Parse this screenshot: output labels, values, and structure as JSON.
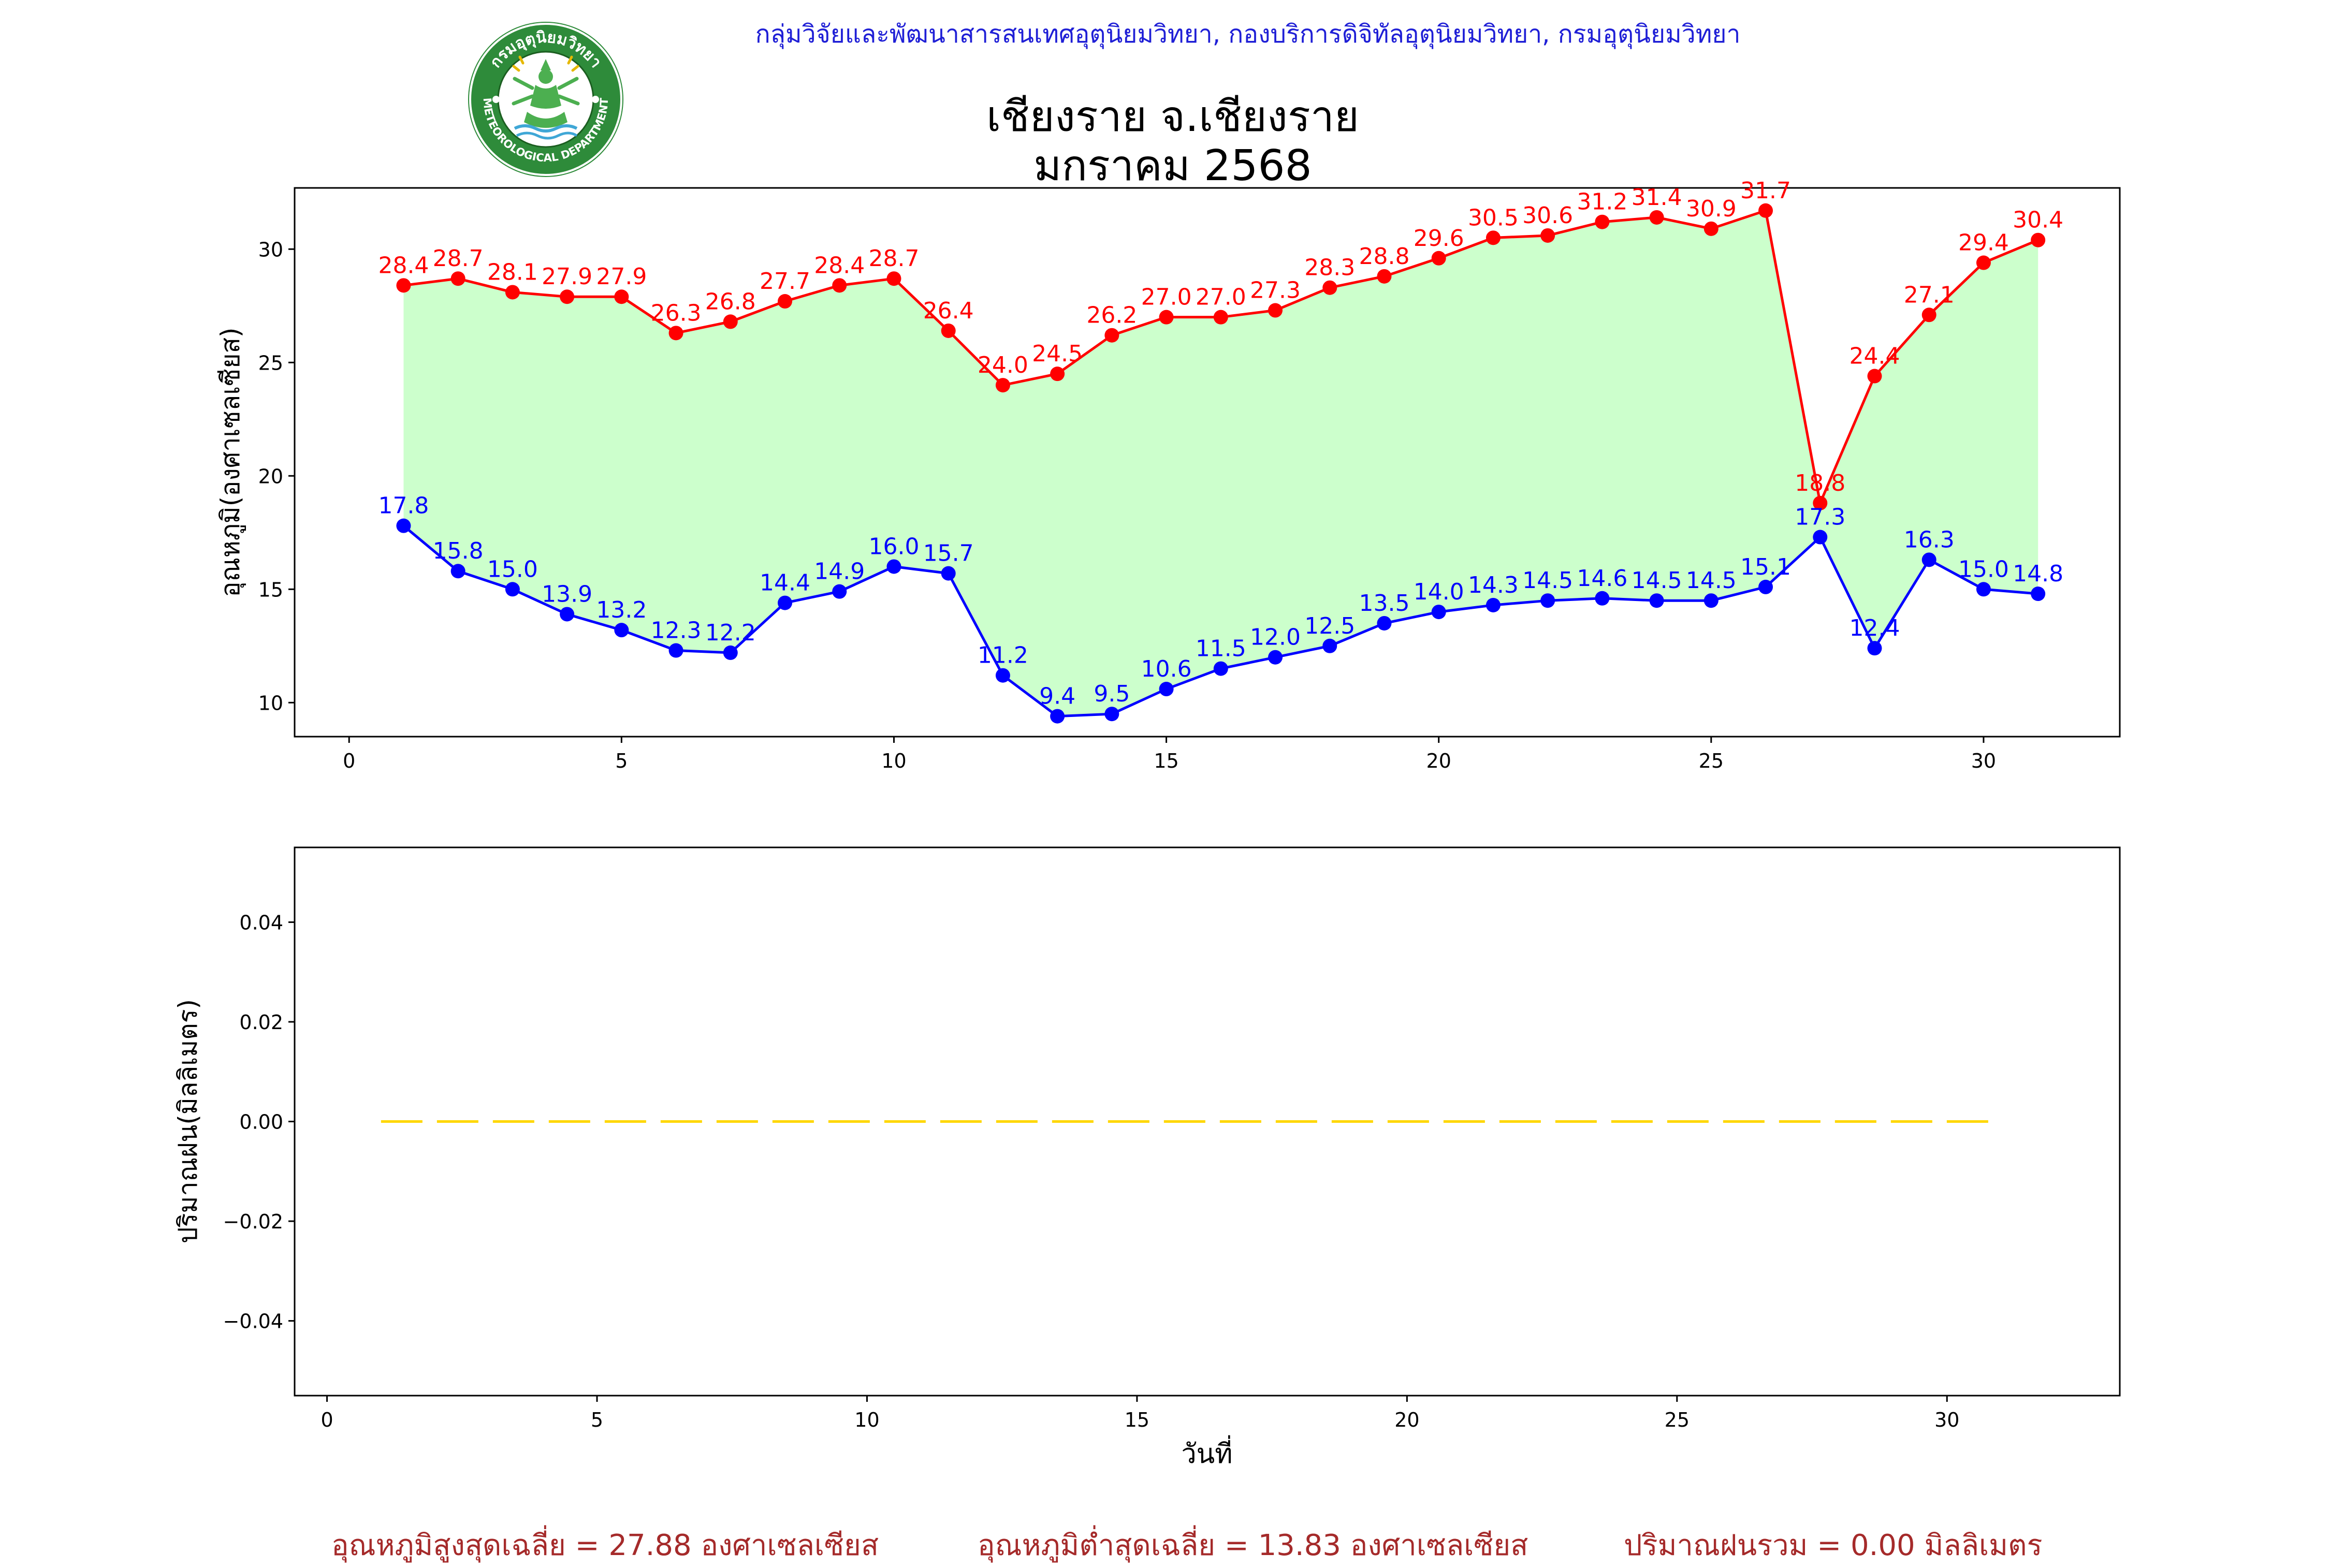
{
  "header": {
    "agency": "กลุ่มวิจัยและพัฒนาสารสนเทศอุตุนิยมวิทยา, กองบริการดิจิทัลอุตุนิยมวิทยา, กรมอุตุนิยมวิทยา",
    "title_line1": "เชียงราย จ.เชียงราย",
    "title_line2": "มกราคม 2568"
  },
  "logo": {
    "icon": "meteorological-department-seal-icon",
    "top_text": "กรมอุตุนิยมวิทยา",
    "bottom_text": "METEOROLOGICAL DEPARTMENT",
    "colors": {
      "ring": "#2e8b3a",
      "inner": "#ffffff",
      "figure": "#4caf50"
    }
  },
  "colors": {
    "max": "#ff0000",
    "min": "#0000ff",
    "fill": "#ccffcc",
    "rain": "#ffd700",
    "summary": "#a52a2a",
    "agency": "#1f1fd6"
  },
  "summary": {
    "avg_max": "อุณหภูมิสูงสุดเฉลี่ย = 27.88 องศาเซลเซียส",
    "avg_min": "อุณหภูมิต่ำสุดเฉลี่ย = 13.83 องศาเซลเซียส",
    "total_rain": "ปริมาณฝนรวม = 0.00 มิลลิเมตร"
  },
  "chart_data": [
    {
      "type": "line",
      "ylabel": "อุณหภูมิ(องศาเซลเซียส)",
      "xlabel": "",
      "xlim": [
        -1,
        32.5
      ],
      "ylim": [
        8.5,
        32.7
      ],
      "xticks": [
        0,
        5,
        10,
        15,
        20,
        25,
        30
      ],
      "yticks": [
        10,
        15,
        20,
        25,
        30
      ],
      "fill_between": true,
      "grid": false,
      "x": [
        1,
        2,
        3,
        4,
        5,
        6,
        7,
        8,
        9,
        10,
        11,
        12,
        13,
        14,
        15,
        16,
        17,
        18,
        19,
        20,
        21,
        22,
        23,
        24,
        25,
        26,
        27,
        28,
        29,
        30,
        31
      ],
      "series": [
        {
          "role": "max",
          "values": [
            28.4,
            28.7,
            28.1,
            27.9,
            27.9,
            26.3,
            26.8,
            27.7,
            28.4,
            28.7,
            26.4,
            24.0,
            24.5,
            26.2,
            27.0,
            27.0,
            27.3,
            28.3,
            28.8,
            29.6,
            30.5,
            30.6,
            31.2,
            31.4,
            30.9,
            31.7,
            18.8,
            24.4,
            27.1,
            29.4,
            30.4
          ]
        },
        {
          "role": "min",
          "values": [
            17.8,
            15.8,
            15.0,
            13.9,
            13.2,
            12.3,
            12.2,
            14.4,
            14.9,
            16.0,
            15.7,
            11.2,
            9.4,
            9.5,
            10.6,
            11.5,
            12.0,
            12.5,
            13.5,
            14.0,
            14.3,
            14.5,
            14.6,
            14.5,
            14.5,
            15.1,
            17.3,
            12.4,
            16.3,
            15.0,
            14.8
          ]
        }
      ]
    },
    {
      "type": "line",
      "ylabel": "ปริมาณฝน(มิลลิเมตร)",
      "xlabel": "วันที่",
      "xlim": [
        -0.6,
        33.2
      ],
      "ylim": [
        -0.055,
        0.055
      ],
      "xticks": [
        0,
        5,
        10,
        15,
        20,
        25,
        30
      ],
      "yticks": [
        0.04,
        0.02,
        0.0,
        -0.02,
        -0.04
      ],
      "ytick_labels": [
        "0.04",
        "0.02",
        "0.00",
        "−0.02",
        "−0.04"
      ],
      "line_style": "dashed",
      "grid": false,
      "x": [
        1,
        2,
        3,
        4,
        5,
        6,
        7,
        8,
        9,
        10,
        11,
        12,
        13,
        14,
        15,
        16,
        17,
        18,
        19,
        20,
        21,
        22,
        23,
        24,
        25,
        26,
        27,
        28,
        29,
        30,
        31
      ],
      "series": [
        {
          "role": "rain",
          "values": [
            0,
            0,
            0,
            0,
            0,
            0,
            0,
            0,
            0,
            0,
            0,
            0,
            0,
            0,
            0,
            0,
            0,
            0,
            0,
            0,
            0,
            0,
            0,
            0,
            0,
            0,
            0,
            0,
            0,
            0,
            0
          ]
        }
      ]
    }
  ]
}
